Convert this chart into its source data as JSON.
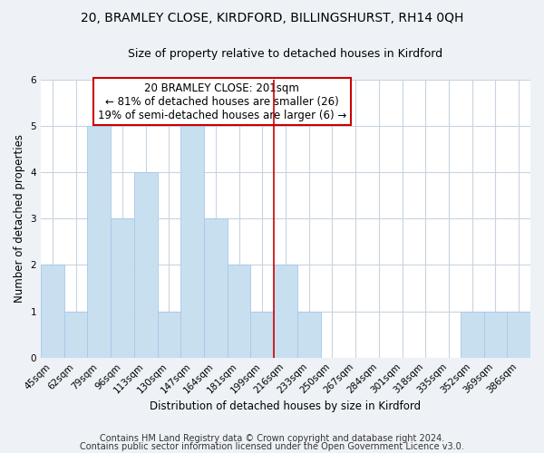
{
  "title": "20, BRAMLEY CLOSE, KIRDFORD, BILLINGSHURST, RH14 0QH",
  "subtitle": "Size of property relative to detached houses in Kirdford",
  "xlabel": "Distribution of detached houses by size in Kirdford",
  "ylabel": "Number of detached properties",
  "bar_color": "#c8dff0",
  "bar_edge_color": "#a8c8e8",
  "categories": [
    "45sqm",
    "62sqm",
    "79sqm",
    "96sqm",
    "113sqm",
    "130sqm",
    "147sqm",
    "164sqm",
    "181sqm",
    "199sqm",
    "216sqm",
    "233sqm",
    "250sqm",
    "267sqm",
    "284sqm",
    "301sqm",
    "318sqm",
    "335sqm",
    "352sqm",
    "369sqm",
    "386sqm"
  ],
  "values": [
    2,
    1,
    5,
    3,
    4,
    1,
    5,
    3,
    2,
    1,
    2,
    1,
    0,
    0,
    0,
    0,
    0,
    0,
    1,
    1,
    1
  ],
  "ylim": [
    0,
    6
  ],
  "yticks": [
    0,
    1,
    2,
    3,
    4,
    5,
    6
  ],
  "annotation_title": "20 BRAMLEY CLOSE: 201sqm",
  "annotation_line1": "← 81% of detached houses are smaller (26)",
  "annotation_line2": "19% of semi-detached houses are larger (6) →",
  "vline_pos": 9.5,
  "vline_color": "#cc0000",
  "footnote1": "Contains HM Land Registry data © Crown copyright and database right 2024.",
  "footnote2": "Contains public sector information licensed under the Open Government Licence v3.0.",
  "background_color": "#eef2f7",
  "plot_bg_color": "#ffffff",
  "grid_color": "#c8d4e0",
  "title_fontsize": 10,
  "subtitle_fontsize": 9,
  "axis_label_fontsize": 8.5,
  "tick_fontsize": 7.5,
  "annotation_fontsize": 8.5,
  "footnote_fontsize": 7
}
